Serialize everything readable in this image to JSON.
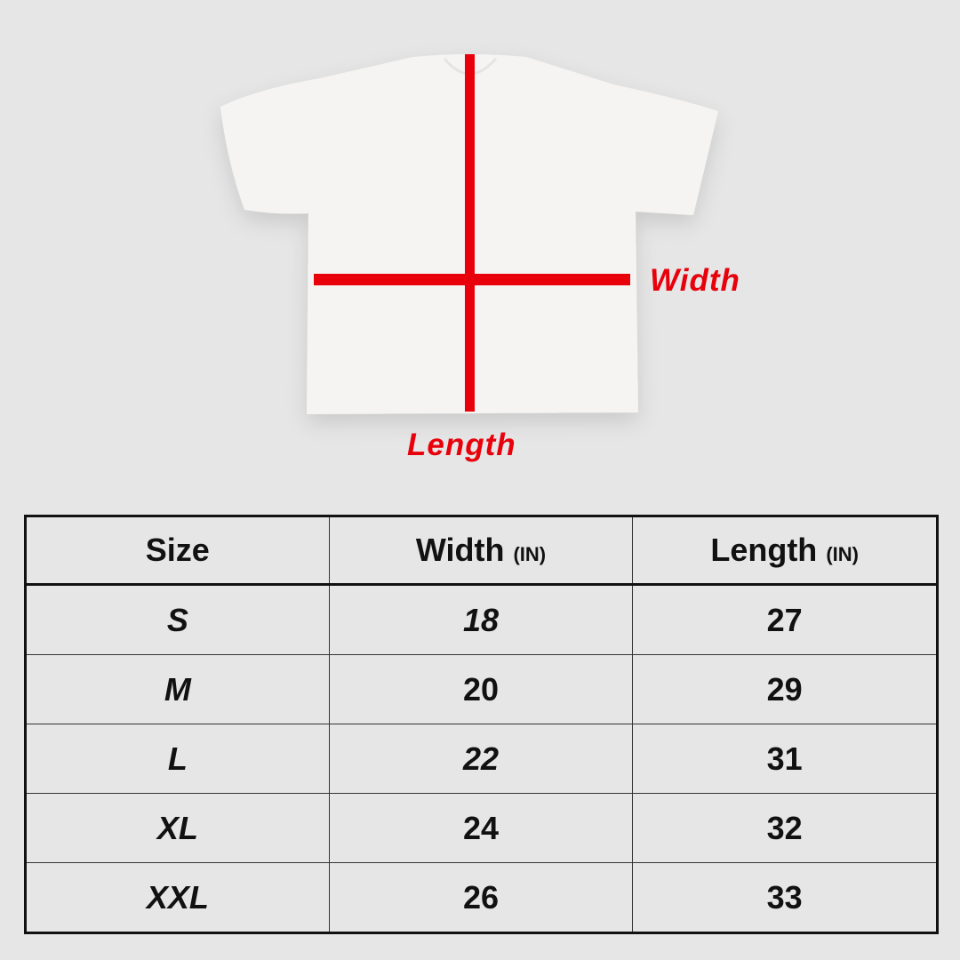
{
  "diagram": {
    "width_label": "Width",
    "length_label": "Length",
    "accent_color": "#e8000b"
  },
  "table": {
    "headers": [
      {
        "label": "Size",
        "unit": ""
      },
      {
        "label": "Width",
        "unit": "(IN)"
      },
      {
        "label": "Length",
        "unit": "(IN)"
      }
    ],
    "rows": [
      {
        "size": "S",
        "width": "18",
        "length": "27"
      },
      {
        "size": "M",
        "width": "20",
        "length": "29"
      },
      {
        "size": "L",
        "width": "22",
        "length": "31"
      },
      {
        "size": "XL",
        "width": "24",
        "length": "32"
      },
      {
        "size": "XXL",
        "width": "26",
        "length": "33"
      }
    ]
  }
}
